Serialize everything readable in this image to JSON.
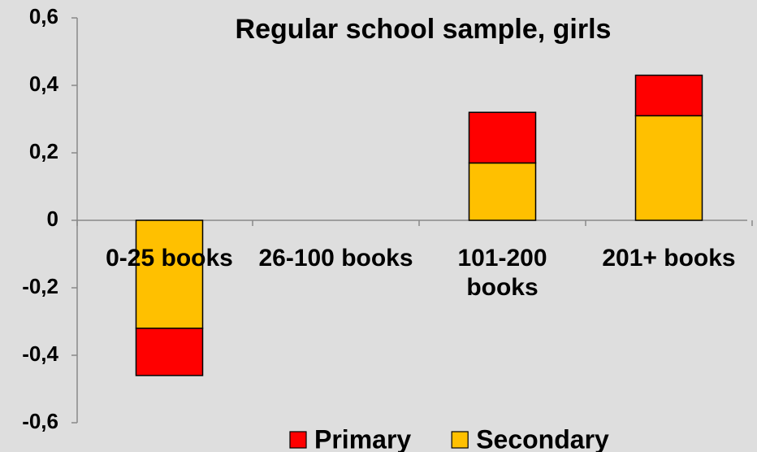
{
  "chart_data": {
    "type": "stacked_bar",
    "title": "Regular school sample, girls",
    "categories": [
      "0-25 books",
      "26-100 books",
      "101-200 books",
      "201+ books"
    ],
    "series": [
      {
        "name": "Secondary",
        "color": "#ffc000",
        "values": [
          -0.32,
          0,
          0.17,
          0.31
        ]
      },
      {
        "name": "Primary",
        "color": "#ff0000",
        "values": [
          -0.14,
          0,
          0.15,
          0.12
        ]
      }
    ],
    "ylim": [
      -0.6,
      0.6
    ],
    "yticks": [
      {
        "value": -0.6,
        "label": "-0,6"
      },
      {
        "value": -0.4,
        "label": "-0,4"
      },
      {
        "value": -0.2,
        "label": "-0,2"
      },
      0,
      {
        "value": 0.2,
        "label": "0,2"
      },
      {
        "value": 0.4,
        "label": "0,4"
      },
      {
        "value": 0.6,
        "label": "0,6"
      }
    ],
    "legend": "bottom",
    "legend_order": [
      "Primary",
      "Secondary"
    ]
  }
}
